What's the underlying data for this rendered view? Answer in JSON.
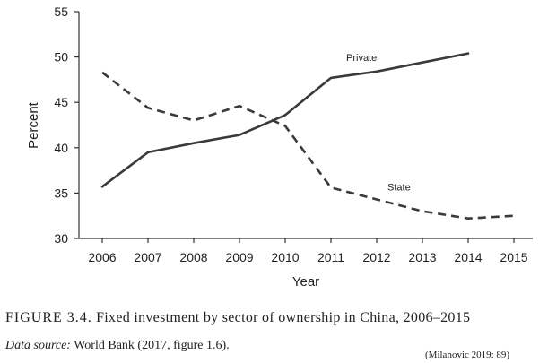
{
  "chart_data": {
    "type": "line",
    "x": [
      "2006",
      "2007",
      "2008",
      "2009",
      "2010",
      "2011",
      "2012",
      "2013",
      "2014",
      "2015"
    ],
    "series": [
      {
        "name": "Private",
        "style": "solid",
        "values": [
          35.7,
          39.5,
          40.5,
          41.4,
          43.6,
          47.7,
          48.4,
          49.4,
          50.4,
          null
        ]
      },
      {
        "name": "State",
        "style": "dashed",
        "values": [
          48.3,
          44.4,
          43.0,
          44.6,
          42.4,
          35.6,
          34.3,
          33.0,
          32.2,
          32.5
        ]
      }
    ],
    "xlabel": "Year",
    "ylabel": "Percent",
    "ylim": [
      30,
      55
    ],
    "yticks": [
      "30",
      "35",
      "40",
      "45",
      "50",
      "55"
    ],
    "grid": false,
    "legend": "inline labels"
  },
  "caption": {
    "figure_number": "FIGURE 3.4.",
    "title": "Fixed investment by sector of ownership in China, 2006–2015",
    "source_label": "Data source:",
    "source_text": "World Bank (2017, figure 1.6).",
    "citation": "(Milanovic 2019: 89)"
  },
  "colors": {
    "line": "#3a3a3a",
    "axis": "#333333",
    "text": "#222222"
  }
}
